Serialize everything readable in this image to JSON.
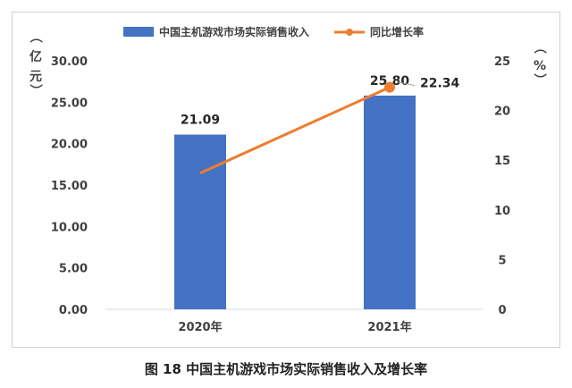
{
  "chart_data": {
    "type": "bar+line",
    "categories": [
      "2020年",
      "2021年"
    ],
    "series": [
      {
        "name": "中国主机游戏市场实际销售收入",
        "type": "bar",
        "axis": "left",
        "values": [
          21.09,
          25.8
        ],
        "labels": [
          "21.09",
          "25.80"
        ],
        "color": "#4472c4"
      },
      {
        "name": "同比增长率",
        "type": "line",
        "axis": "right",
        "values": [
          13.7,
          22.34
        ],
        "labels": [
          "",
          "22.34"
        ],
        "color": "#ed7d31"
      }
    ],
    "y_left": {
      "unit_label": [
        "（",
        "亿",
        "元",
        "）"
      ],
      "range": [
        0,
        30
      ],
      "ticks": [
        "0.00",
        "5.00",
        "10.00",
        "15.00",
        "20.00",
        "25.00",
        "30.00"
      ]
    },
    "y_right": {
      "unit_label": [
        "（",
        "%",
        "）"
      ],
      "range": [
        0,
        25
      ],
      "ticks": [
        "0",
        "5",
        "10",
        "15",
        "20",
        "25"
      ]
    },
    "legend_position": "top",
    "grid": false
  },
  "caption": "图 18 中国主机游戏市场实际销售收入及增长率"
}
